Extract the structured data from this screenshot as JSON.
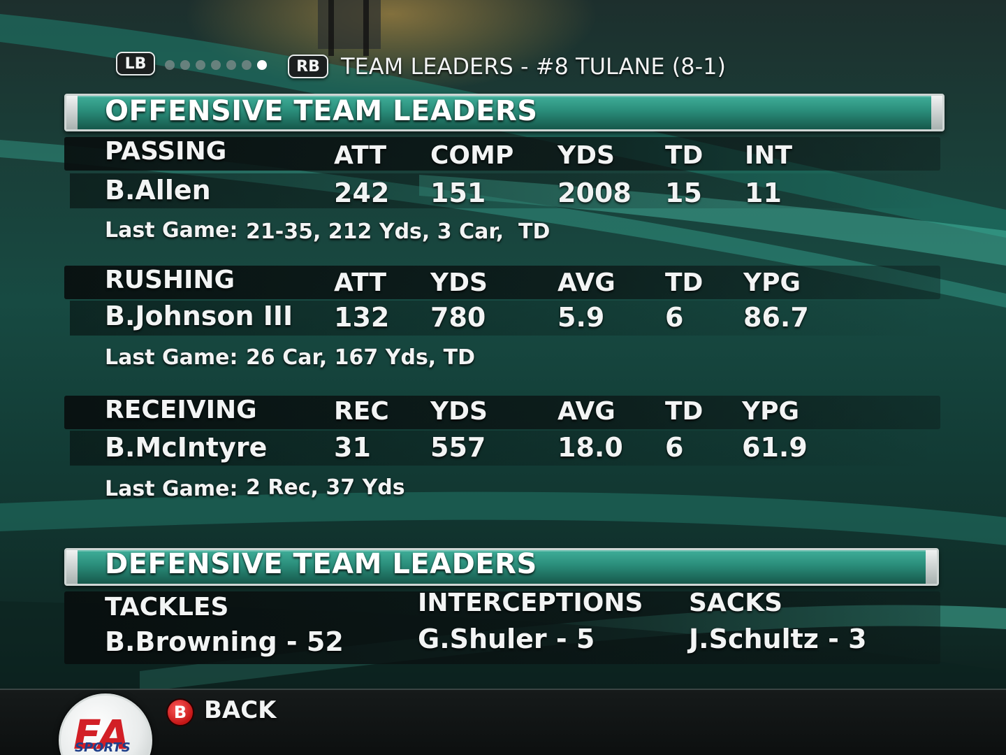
{
  "header": {
    "left_bumper": "LB",
    "right_bumper": "RB",
    "page_dots": 7,
    "active_dot": 7,
    "title": "TEAM LEADERS - #8 TULANE (8-1)"
  },
  "offense": {
    "title": "OFFENSIVE TEAM LEADERS",
    "passing": {
      "category": "PASSING",
      "columns": [
        "ATT",
        "COMP",
        "YDS",
        "TD",
        "INT"
      ],
      "player": "B.Allen",
      "values": [
        "242",
        "151",
        "2008",
        "15",
        "11"
      ],
      "last_game_label": "Last Game:",
      "last_game": "21-35, 212 Yds, 3 Car,  TD"
    },
    "rushing": {
      "category": "RUSHING",
      "columns": [
        "ATT",
        "YDS",
        "AVG",
        "TD",
        "YPG"
      ],
      "player": "B.Johnson III",
      "values": [
        "132",
        "780",
        "5.9",
        "6",
        "86.7"
      ],
      "last_game_label": "Last Game:",
      "last_game": "26 Car, 167 Yds, TD"
    },
    "receiving": {
      "category": "RECEIVING",
      "columns": [
        "REC",
        "YDS",
        "AVG",
        "TD",
        "YPG"
      ],
      "player": "B.McIntyre",
      "values": [
        "31",
        "557",
        "18.0",
        "6",
        "61.9"
      ],
      "last_game_label": "Last Game:",
      "last_game": "2 Rec, 37 Yds"
    }
  },
  "defense": {
    "title": "DEFENSIVE TEAM LEADERS",
    "categories": [
      {
        "label": "TACKLES",
        "leader": "B.Browning - 52"
      },
      {
        "label": "INTERCEPTIONS",
        "leader": "G.Shuler - 5"
      },
      {
        "label": "SACKS",
        "leader": "J.Schultz - 3"
      }
    ]
  },
  "footer": {
    "logo_text": "EA",
    "logo_sub": "SPORTS",
    "back_button_glyph": "B",
    "back_label": "BACK"
  },
  "colors": {
    "accent_teal": "#2a8d7a",
    "button_b_red": "#c41616",
    "ea_red": "#d21f26"
  }
}
